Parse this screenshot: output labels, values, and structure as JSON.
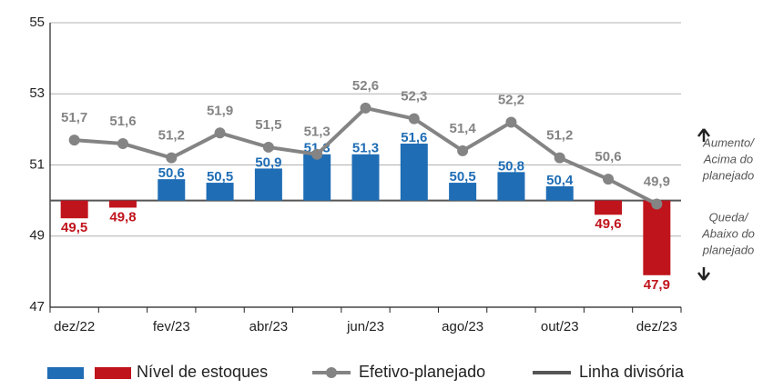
{
  "chart_data": {
    "type": "bar-line",
    "categories": [
      "dez/22",
      null,
      "fev/23",
      null,
      "abr/23",
      null,
      "jun/23",
      null,
      "ago/23",
      null,
      "out/23",
      null,
      "dez/23"
    ],
    "series": [
      {
        "name": "Nível de estoques",
        "type": "bar",
        "colors": {
          "above": "#1f6db5",
          "below": "#c0141c"
        },
        "values": [
          49.5,
          49.8,
          50.6,
          50.5,
          50.9,
          51.3,
          51.3,
          51.6,
          50.5,
          50.8,
          50.4,
          49.6,
          47.9
        ],
        "value_labels": [
          "49,5",
          "49,8",
          "50,6",
          "50,5",
          "50,9",
          "51,3",
          "51,3",
          "51,6",
          "50,5",
          "50,8",
          "50,4",
          "49,6",
          "47,9"
        ]
      },
      {
        "name": "Efetivo-planejado",
        "type": "line",
        "color": "#848484",
        "values": [
          51.7,
          51.6,
          51.2,
          51.9,
          51.5,
          51.3,
          52.6,
          52.3,
          51.4,
          52.2,
          51.2,
          50.6,
          49.9
        ],
        "value_labels": [
          "51,7",
          "51,6",
          "51,2",
          "51,9",
          "51,5",
          "51,3",
          "52,6",
          "52,3",
          "51,4",
          "52,2",
          "51,2",
          "50,6",
          "49,9"
        ]
      }
    ],
    "divider": {
      "name": "Linha divisória",
      "value": 50,
      "color": "#555555"
    },
    "ylim": [
      47,
      55
    ],
    "yticks": [
      47,
      49,
      51,
      53,
      55
    ],
    "grid": true,
    "annotations": [
      {
        "lines": [
          "Aumento/",
          "Acima do",
          "planejado"
        ]
      },
      {
        "lines": [
          "Queda/",
          "Abaixo do",
          "planejado"
        ]
      }
    ]
  }
}
